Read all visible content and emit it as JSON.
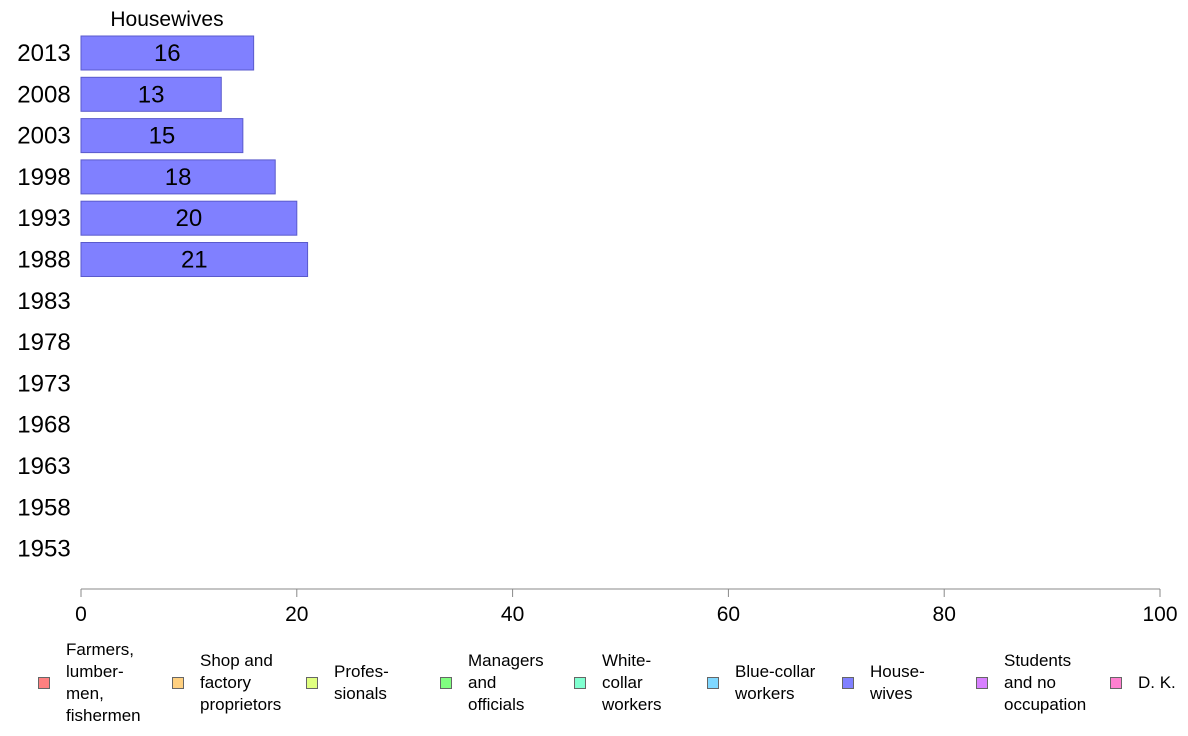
{
  "chart_data": {
    "type": "bar",
    "orientation": "horizontal",
    "title": "Housewives",
    "categories": [
      "2013",
      "2008",
      "2003",
      "1998",
      "1993",
      "1988",
      "1983",
      "1978",
      "1973",
      "1968",
      "1963",
      "1958",
      "1953"
    ],
    "series": [
      {
        "name": "House-\nwives",
        "values": [
          16,
          13,
          15,
          18,
          20,
          21,
          null,
          null,
          null,
          null,
          null,
          null,
          null
        ]
      }
    ],
    "data_labels": [
      "16",
      "13",
      "15",
      "18",
      "20",
      "21",
      "",
      "",
      "",
      "",
      "",
      "",
      ""
    ],
    "xlim": [
      0,
      100
    ],
    "xticks": [
      "0",
      "20",
      "40",
      "60",
      "80",
      "100"
    ],
    "bar_color": "#8080ff",
    "grid": false,
    "legend_position": "bottom"
  },
  "legend": [
    {
      "label": "Farmers,\nlumber-\nmen,\nfishermen",
      "color": "#ff8080"
    },
    {
      "label": "Shop and\nfactory\nproprietors",
      "color": "#ffd080"
    },
    {
      "label": "Profes-\nsionals",
      "color": "#e0ff80"
    },
    {
      "label": "Managers\nand\nofficials",
      "color": "#80ff80"
    },
    {
      "label": "White-\ncollar\nworkers",
      "color": "#80ffd0"
    },
    {
      "label": "Blue-collar\nworkers",
      "color": "#80d8ff"
    },
    {
      "label": "House-\nwives",
      "color": "#8080ff"
    },
    {
      "label": "Students\nand no\noccupation",
      "color": "#d880ff"
    },
    {
      "label": "D. K.",
      "color": "#ff80d0"
    }
  ]
}
